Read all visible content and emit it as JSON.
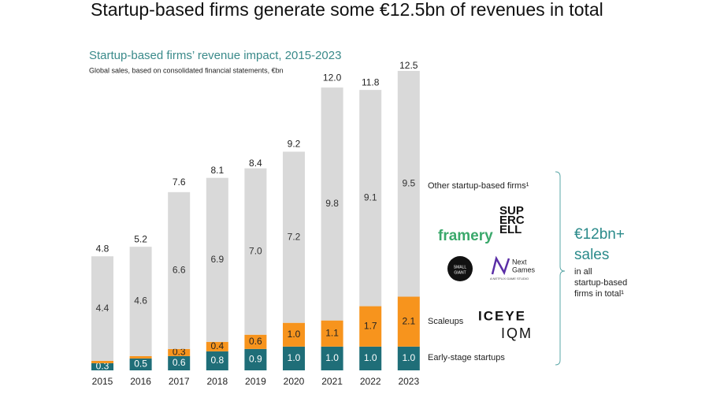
{
  "chart_data": {
    "type": "stacked_bar",
    "title": "Startup-based firms generate some €12.5bn of revenues in total",
    "subtitle": "Startup-based firms’ revenue impact, 2015-2023",
    "note": "Global sales, based on consolidated financial statements, €bn",
    "categories": [
      "2015",
      "2016",
      "2017",
      "2018",
      "2019",
      "2020",
      "2021",
      "2022",
      "2023"
    ],
    "series": [
      {
        "name": "Early-stage startups",
        "color": "#1f6e78",
        "label_color": "#ffffff",
        "values": [
          0.3,
          0.5,
          0.6,
          0.8,
          0.9,
          1.0,
          1.0,
          1.0,
          1.0
        ],
        "value_labels": [
          "0.3",
          "0.5",
          "0.6",
          "0.8",
          "0.9",
          "1.0",
          "1.0",
          "1.0",
          "1.0"
        ]
      },
      {
        "name": "Scaleups",
        "color": "#f7941d",
        "label_color": "#222222",
        "values": [
          0.1,
          0.1,
          0.3,
          0.4,
          0.6,
          1.0,
          1.1,
          1.7,
          2.1
        ],
        "value_labels": [
          null,
          null,
          "0.3",
          "0.4",
          "0.6",
          "1.0",
          "1.1",
          "1.7",
          "2.1"
        ]
      },
      {
        "name": "Other startup-based firms¹",
        "color": "#d9d9d9",
        "label_color": "#333333",
        "values": [
          4.4,
          4.6,
          6.6,
          6.9,
          7.0,
          7.2,
          9.8,
          9.1,
          9.5
        ],
        "value_labels": [
          "4.4",
          "4.6",
          "6.6",
          "6.9",
          "7.0",
          "7.2",
          "9.8",
          "9.1",
          "9.5"
        ]
      }
    ],
    "totals": [
      4.8,
      5.2,
      7.6,
      8.1,
      8.4,
      9.2,
      12.0,
      11.8,
      12.5
    ],
    "total_labels": [
      "4.8",
      "5.2",
      "7.6",
      "8.1",
      "8.4",
      "9.2",
      "12.0",
      "11.8",
      "12.5"
    ],
    "logos": {
      "framery": "framery",
      "supercell": [
        "SUP",
        "ERC",
        "ELL"
      ],
      "small_giant": [
        "SMALL",
        "GIANT"
      ],
      "next_games": [
        "Next",
        "Games"
      ],
      "next_games_sub": "A NETFLIX GAME STUDIO",
      "iceye": "ICEYE",
      "iqm": "IQM"
    },
    "callout": {
      "headline": [
        "€12bn+",
        "sales"
      ],
      "text": [
        "in all",
        "startup-based",
        "firms in total¹"
      ]
    }
  }
}
